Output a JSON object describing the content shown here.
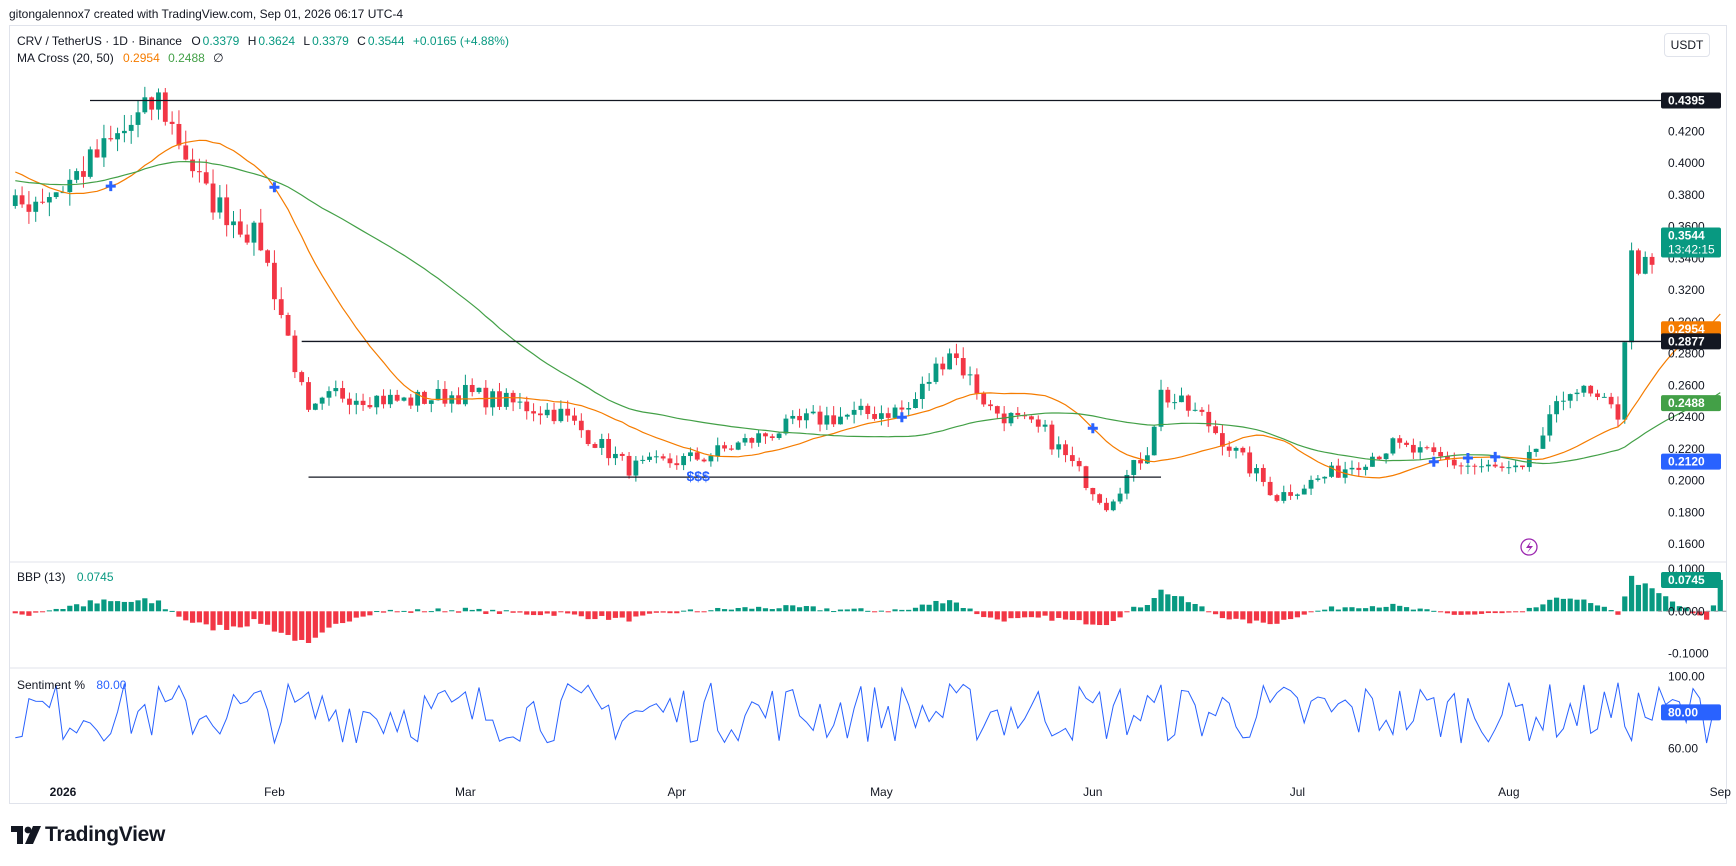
{
  "header": {
    "caption": "gitongalennox7 created with TradingView.com, Sep 01, 2026 06:17 UTC-4"
  },
  "symbol": {
    "name": "CRV / TetherUS · 1D · Binance",
    "o_label": "O",
    "o": "0.3379",
    "h_label": "H",
    "h": "0.3624",
    "l_label": "L",
    "l": "0.3379",
    "c_label": "C",
    "c": "0.3544",
    "change": "+0.0165 (+4.88%)"
  },
  "ma_legend": {
    "name": "MA Cross (20, 50)",
    "fast": "0.2954",
    "slow": "0.2488",
    "symbol": "∅"
  },
  "bbp_legend": {
    "name": "BBP (13)",
    "value": "0.0745"
  },
  "sentiment_legend": {
    "name": "Sentiment %",
    "value": "80.00"
  },
  "currency_button": "USDT",
  "brand": "TradingView",
  "annotation": "$$$",
  "colors": {
    "up": "#089981",
    "down": "#f23645",
    "ma_fast": "#f57c00",
    "ma_slow": "#43a047",
    "sentiment": "#2962ff",
    "cross": "#2962ff",
    "text": "#131722",
    "axis_text": "#131722"
  },
  "chart_data": [
    {
      "type": "candlestick",
      "name": "CRV / TetherUS",
      "ylim": [
        0.15,
        0.465
      ],
      "y_ticks": [
        "0.1600",
        "0.1800",
        "0.2000",
        "0.2200",
        "0.2400",
        "0.2600",
        "0.2800",
        "0.3000",
        "0.3200",
        "0.3400",
        "0.3600",
        "0.3800",
        "0.4000",
        "0.4200"
      ],
      "x_ticks": [
        "2026",
        "Feb",
        "Mar",
        "Apr",
        "May",
        "Jun",
        "Jul",
        "Aug",
        "Sep"
      ],
      "price_labels": [
        {
          "value": "0.4395",
          "price": 0.4395,
          "bg": "#131722",
          "fg": "#ffffff"
        },
        {
          "value": "0.3544",
          "price": 0.3544,
          "sub": "13:42:15",
          "bg": "#089981",
          "fg": "#ffffff"
        },
        {
          "value": "0.2954",
          "price": 0.2954,
          "bg": "#f57c00",
          "fg": "#ffffff"
        },
        {
          "value": "0.2877",
          "price": 0.2877,
          "bg": "#131722",
          "fg": "#ffffff"
        },
        {
          "value": "0.2488",
          "price": 0.2488,
          "bg": "#43a047",
          "fg": "#ffffff"
        },
        {
          "value": "0.2120",
          "price": 0.212,
          "bg": "#2962ff",
          "fg": "#ffffff"
        }
      ],
      "horizontal_lines": [
        {
          "price": 0.4395,
          "from_day": -15,
          "to_day": 243
        },
        {
          "price": 0.2877,
          "from_day": 35,
          "to_day": 243
        },
        {
          "price": 0.2022,
          "from_day": 36,
          "to_day": 161
        }
      ],
      "anchors": [
        {
          "date": "2026-01-01",
          "price": 0.385
        },
        {
          "date": "2026-01-10",
          "price": 0.42
        },
        {
          "date": "2026-01-15",
          "price": 0.44
        },
        {
          "date": "2026-01-22",
          "price": 0.38
        },
        {
          "date": "2026-01-30",
          "price": 0.35
        },
        {
          "date": "2026-02-03",
          "price": 0.29
        },
        {
          "date": "2026-02-06",
          "price": 0.24
        },
        {
          "date": "2026-02-10",
          "price": 0.255
        },
        {
          "date": "2026-02-20",
          "price": 0.25
        },
        {
          "date": "2026-03-01",
          "price": 0.255
        },
        {
          "date": "2026-03-15",
          "price": 0.242
        },
        {
          "date": "2026-03-25",
          "price": 0.208
        },
        {
          "date": "2026-04-05",
          "price": 0.215
        },
        {
          "date": "2026-04-20",
          "price": 0.238
        },
        {
          "date": "2026-05-05",
          "price": 0.245
        },
        {
          "date": "2026-05-11",
          "price": 0.283
        },
        {
          "date": "2026-05-17",
          "price": 0.245
        },
        {
          "date": "2026-05-25",
          "price": 0.23
        },
        {
          "date": "2026-06-03",
          "price": 0.185
        },
        {
          "date": "2026-06-09",
          "price": 0.22
        },
        {
          "date": "2026-06-11",
          "price": 0.255
        },
        {
          "date": "2026-06-17",
          "price": 0.24
        },
        {
          "date": "2026-06-28",
          "price": 0.19
        },
        {
          "date": "2026-07-08",
          "price": 0.208
        },
        {
          "date": "2026-07-15",
          "price": 0.222
        },
        {
          "date": "2026-07-25",
          "price": 0.21
        },
        {
          "date": "2026-08-03",
          "price": 0.205
        },
        {
          "date": "2026-08-10",
          "price": 0.26
        },
        {
          "date": "2026-08-17",
          "price": 0.242
        },
        {
          "date": "2026-08-19",
          "price": 0.34
        },
        {
          "date": "2026-08-24",
          "price": 0.325
        },
        {
          "date": "2026-08-29",
          "price": 0.3
        },
        {
          "date": "2026-08-31",
          "price": 0.3379
        },
        {
          "date": "2026-09-01",
          "price": 0.3544
        }
      ],
      "ma_cross_markers": [
        "2026-01-08",
        "2026-02-01",
        "2026-05-04",
        "2026-06-01",
        "2026-07-21",
        "2026-07-26",
        "2026-07-30"
      ],
      "annotation_date": "2026-04-03"
    },
    {
      "type": "histogram",
      "name": "BBP (13)",
      "ylim": [
        -0.13,
        0.11
      ],
      "y_ticks": [
        "0.1000",
        "0.0000",
        "-0.1000"
      ],
      "current_label": "0.0745"
    },
    {
      "type": "line",
      "name": "Sentiment %",
      "ylim": [
        48,
        103
      ],
      "y_ticks": [
        "100.00",
        "60.00"
      ],
      "current_label": "80.00"
    }
  ]
}
